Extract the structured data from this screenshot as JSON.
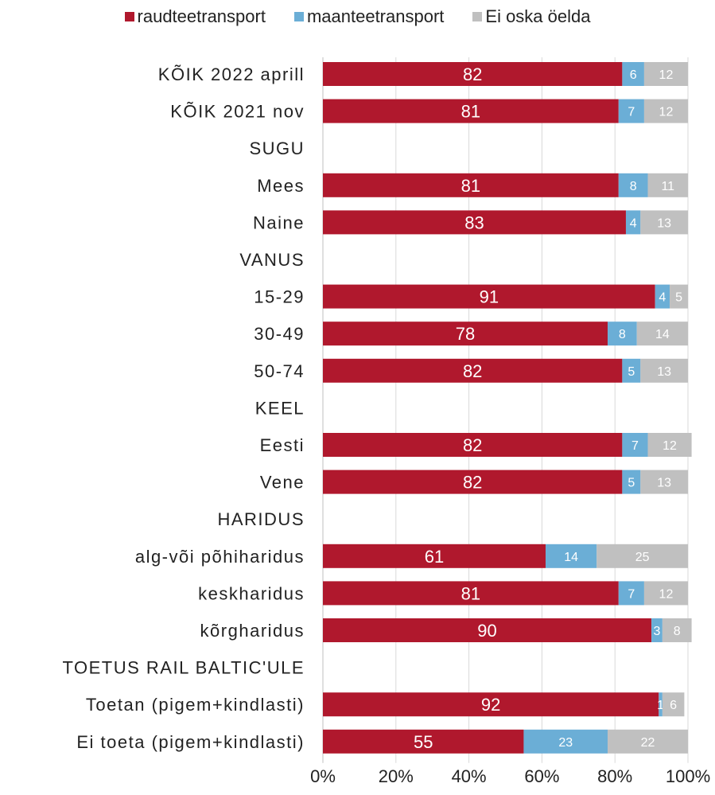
{
  "chart_data": {
    "type": "bar",
    "orientation": "horizontal",
    "stacked": true,
    "percent_stacked": true,
    "xlim": [
      0,
      100
    ],
    "x_tick_labels": [
      "0%",
      "20%",
      "40%",
      "60%",
      "80%",
      "100%"
    ],
    "grid": true,
    "legend_position": "top",
    "categories": [
      "KÕIK 2022 aprill",
      "KÕIK 2021 nov",
      "SUGU",
      "Mees",
      "Naine",
      "VANUS",
      "15-29",
      "30-49",
      "50-74",
      "KEEL",
      "Eesti",
      "Vene",
      "HARIDUS",
      "alg-või põhiharidus",
      "keskharidus",
      "kõrgharidus",
      "TOETUS RAIL BALTIC'ULE",
      "Toetan (pigem+kindlasti)",
      "Ei toeta (pigem+kindlasti)"
    ],
    "series": [
      {
        "name": "raudteetransport",
        "color": "#B0182D",
        "label_color": "#ffffff",
        "values": [
          82,
          81,
          null,
          81,
          83,
          null,
          91,
          78,
          82,
          null,
          82,
          82,
          null,
          61,
          81,
          90,
          null,
          92,
          55
        ]
      },
      {
        "name": "maanteetransport",
        "color": "#6BAED6",
        "label_color": "#ffffff",
        "values": [
          6,
          7,
          null,
          8,
          4,
          null,
          4,
          8,
          5,
          null,
          7,
          5,
          null,
          14,
          7,
          3,
          null,
          1,
          23
        ]
      },
      {
        "name": "Ei oska öelda",
        "color": "#C0C0C0",
        "label_color": "#ffffff",
        "values": [
          12,
          12,
          null,
          11,
          13,
          null,
          5,
          14,
          13,
          null,
          12,
          13,
          null,
          25,
          12,
          8,
          null,
          6,
          22
        ]
      }
    ]
  }
}
